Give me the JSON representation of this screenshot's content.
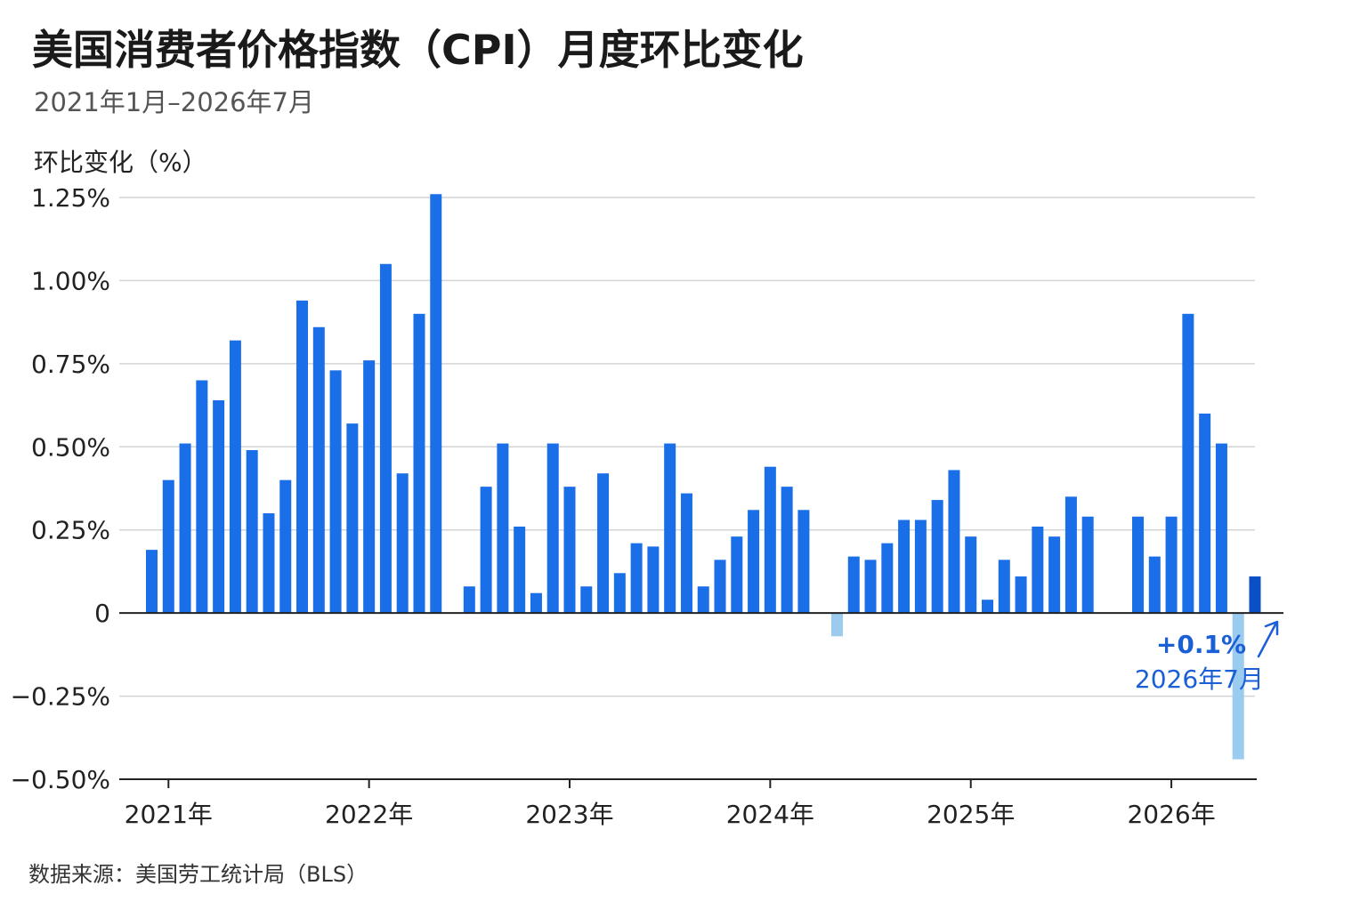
{
  "title": "美国消费者价格指数（CPI）月度环比变化",
  "subtitle": "2021年1月–2026年7月",
  "source": "数据来源：美国劳工统计局（BLS）",
  "colors": {
    "bar": "#1a6ee8",
    "negative": "#9ccbf0",
    "highlight": "#0a4fc4",
    "grid": "#d4d4d4",
    "axis": "#222222",
    "annotation": "#1a5fd6"
  },
  "chart_data": {
    "type": "bar",
    "ylabel": "环比变化（%）",
    "ylim": [
      -0.5,
      1.25
    ],
    "yticks": [
      -0.5,
      -0.25,
      0,
      0.25,
      0.5,
      0.75,
      1.0,
      1.25
    ],
    "ytick_labels": [
      "−0.50%",
      "−0.25%",
      "0",
      "0.25%",
      "0.50%",
      "0.75%",
      "1.00%",
      "1.25%"
    ],
    "xticks": [
      {
        "label": "2021年",
        "index": 1
      },
      {
        "label": "2022年",
        "index": 13
      },
      {
        "label": "2023年",
        "index": 25
      },
      {
        "label": "2024年",
        "index": 37
      },
      {
        "label": "2025年",
        "index": 49
      },
      {
        "label": "2026年",
        "index": 61
      }
    ],
    "grid": true,
    "values": [
      0.19,
      0.4,
      0.51,
      0.7,
      0.64,
      0.82,
      0.49,
      0.3,
      0.4,
      0.94,
      0.86,
      0.73,
      0.57,
      0.76,
      1.05,
      0.42,
      0.9,
      1.26,
      null,
      0.08,
      0.38,
      0.51,
      0.26,
      0.06,
      0.51,
      0.38,
      0.08,
      0.42,
      0.12,
      0.21,
      0.2,
      0.51,
      0.36,
      0.08,
      0.16,
      0.23,
      0.31,
      0.44,
      0.38,
      0.31,
      null,
      -0.07,
      0.17,
      0.16,
      0.21,
      0.28,
      0.28,
      0.34,
      0.43,
      0.23,
      0.04,
      0.16,
      0.11,
      0.26,
      0.23,
      0.35,
      0.29,
      null,
      null,
      0.29,
      0.17,
      0.29,
      0.9,
      0.6,
      0.51,
      -0.44,
      0.11
    ],
    "annotation": {
      "value_label": "+0.1%",
      "date_label": "2026年7月"
    }
  }
}
